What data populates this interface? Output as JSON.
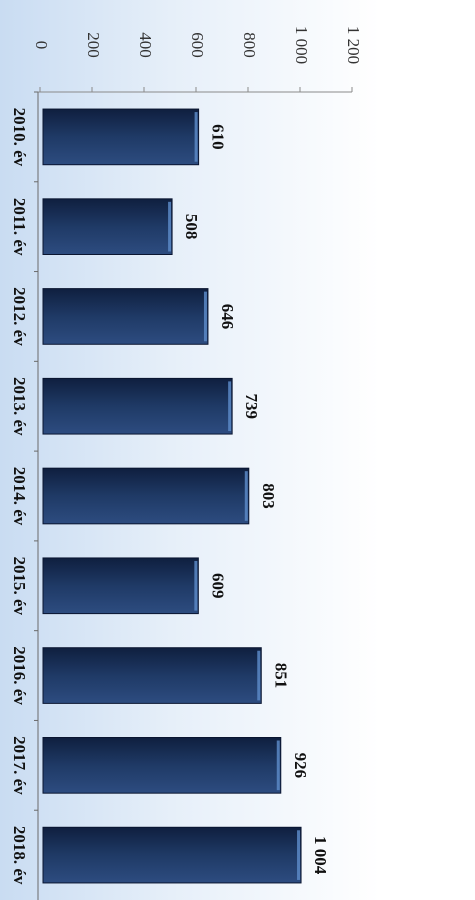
{
  "chart_data": {
    "type": "bar",
    "orientation": "vertical-bars-rotated-90-clockwise",
    "categories": [
      "2010. év",
      "2011. év",
      "2012. év",
      "2013. év",
      "2014. év",
      "2015. év",
      "2016. év",
      "2017. év",
      "2018. év"
    ],
    "values": [
      610,
      508,
      646,
      739,
      803,
      609,
      851,
      926,
      1004
    ],
    "data_labels": [
      "610",
      "508",
      "646",
      "739",
      "803",
      "609",
      "851",
      "926",
      "1 004"
    ],
    "y_ticks": [
      0,
      200,
      400,
      600,
      800,
      1000,
      1200
    ],
    "y_tick_labels": [
      "0",
      "200",
      "400",
      "600",
      "800",
      "1 000",
      "1 200"
    ],
    "ylim": [
      0,
      1200
    ],
    "grid": false,
    "title": "",
    "xlabel": "",
    "ylabel": "",
    "colors": {
      "bar_dark": "#0f1f3f",
      "bar_mid": "#1f3a66",
      "bar_light": "#3c5e94",
      "bar_highlight": "#5b88c6",
      "background_blue": "#c9dcf2"
    }
  }
}
